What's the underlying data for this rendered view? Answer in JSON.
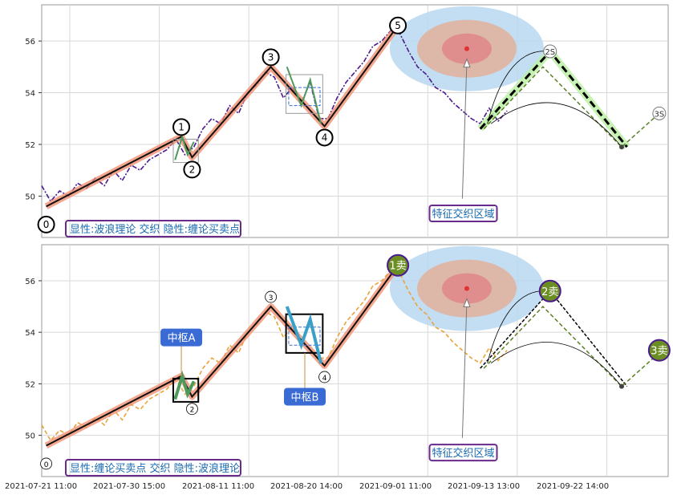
{
  "chart_data": {
    "type": "line",
    "x_tick_labels": [
      "2021-07-21 11:00",
      "2021-07-30 15:00",
      "2021-08-11 11:00",
      "2021-08-20 14:00",
      "2021-09-01 11:00",
      "2021-09-13 13:00",
      "2021-09-22 14:00"
    ],
    "ylim": [
      48.4,
      57.4
    ],
    "y_ticks": [
      50,
      52,
      54,
      56
    ],
    "grid": true,
    "panels": [
      {
        "caption": "显性:波浪理论 交织 隐性:缠论买卖点",
        "region_label": "特征交织区域",
        "wave_points": [
          {
            "x": 0.5,
            "y": 49.6,
            "label": "0"
          },
          {
            "x": 15.6,
            "y": 52.3,
            "label": "1"
          },
          {
            "x": 16.8,
            "y": 51.5,
            "label": "2"
          },
          {
            "x": 25.6,
            "y": 55.0,
            "label": "3"
          },
          {
            "x": 31.6,
            "y": 52.7,
            "label": "4"
          },
          {
            "x": 39.8,
            "y": 56.6,
            "label": "5"
          }
        ],
        "projection_points": [
          {
            "x": 49.0,
            "y": 52.6,
            "label": ""
          },
          {
            "x": 56.8,
            "y": 55.6,
            "label": "2S"
          },
          {
            "x": 65.4,
            "y": 51.9,
            "label": ""
          },
          {
            "x": 69.0,
            "y": 53.2,
            "label": "3S"
          }
        ]
      },
      {
        "caption": "显性:缠论买卖点 交织 隐性:波浪理论",
        "region_label": "特征交织区域",
        "hub_a_label": "中枢A",
        "hub_b_label": "中枢B",
        "bi_points": [
          {
            "x": 0.5,
            "y": 49.6,
            "label": "0"
          },
          {
            "x": 15.6,
            "y": 52.3,
            "label": ""
          },
          {
            "x": 16.8,
            "y": 51.5,
            "label": "2"
          },
          {
            "x": 25.6,
            "y": 55.0,
            "label": "3"
          },
          {
            "x": 31.6,
            "y": 52.7,
            "label": "4"
          },
          {
            "x": 39.8,
            "y": 56.6,
            "label": "1卖"
          }
        ],
        "sell_points": [
          {
            "x": 56.8,
            "y": 55.6,
            "label": "2卖"
          },
          {
            "x": 69.0,
            "y": 53.3,
            "label": "3卖"
          }
        ]
      }
    ],
    "price_series": [
      {
        "x": 0,
        "y": 50.4
      },
      {
        "x": 1,
        "y": 49.8
      },
      {
        "x": 2,
        "y": 50.2
      },
      {
        "x": 3,
        "y": 50.0
      },
      {
        "x": 4,
        "y": 50.5
      },
      {
        "x": 5,
        "y": 50.3
      },
      {
        "x": 6,
        "y": 50.7
      },
      {
        "x": 7,
        "y": 50.4
      },
      {
        "x": 8,
        "y": 51.0
      },
      {
        "x": 9,
        "y": 50.6
      },
      {
        "x": 10,
        "y": 51.2
      },
      {
        "x": 11,
        "y": 51.0
      },
      {
        "x": 12,
        "y": 51.4
      },
      {
        "x": 13,
        "y": 51.6
      },
      {
        "x": 14,
        "y": 51.8
      },
      {
        "x": 15,
        "y": 52.2
      },
      {
        "x": 16,
        "y": 51.6
      },
      {
        "x": 17,
        "y": 51.9
      },
      {
        "x": 18,
        "y": 52.6
      },
      {
        "x": 19,
        "y": 53.0
      },
      {
        "x": 20,
        "y": 52.8
      },
      {
        "x": 21,
        "y": 53.5
      },
      {
        "x": 22,
        "y": 53.2
      },
      {
        "x": 23,
        "y": 54.0
      },
      {
        "x": 24,
        "y": 54.3
      },
      {
        "x": 25,
        "y": 54.8
      },
      {
        "x": 26,
        "y": 54.6
      },
      {
        "x": 27,
        "y": 53.8
      },
      {
        "x": 28,
        "y": 54.2
      },
      {
        "x": 29,
        "y": 53.6
      },
      {
        "x": 30,
        "y": 54.4
      },
      {
        "x": 31,
        "y": 53.0
      },
      {
        "x": 32,
        "y": 53.0
      },
      {
        "x": 33,
        "y": 53.8
      },
      {
        "x": 34,
        "y": 54.4
      },
      {
        "x": 35,
        "y": 54.8
      },
      {
        "x": 36,
        "y": 55.2
      },
      {
        "x": 37,
        "y": 55.8
      },
      {
        "x": 38,
        "y": 56.0
      },
      {
        "x": 39,
        "y": 56.4
      },
      {
        "x": 40,
        "y": 56.3
      },
      {
        "x": 41,
        "y": 55.6
      },
      {
        "x": 42,
        "y": 55.0
      },
      {
        "x": 43,
        "y": 54.7
      },
      {
        "x": 44,
        "y": 54.2
      },
      {
        "x": 45,
        "y": 54.0
      },
      {
        "x": 46,
        "y": 53.6
      },
      {
        "x": 47,
        "y": 53.3
      },
      {
        "x": 48,
        "y": 53.0
      },
      {
        "x": 49,
        "y": 52.8
      },
      {
        "x": 50,
        "y": 53.4
      },
      {
        "x": 51,
        "y": 52.9
      },
      {
        "x": 52,
        "y": 53.3
      }
    ],
    "colors": {
      "wave_line": "#111111",
      "wave_halo": "#f08868",
      "price_top": "#4b1a8c",
      "price_bottom": "#e8a43a",
      "projection": "#5b7f25",
      "region_outer": "#b8d8f0",
      "region_mid": "#e0b4a0",
      "region_inner": "#e08a8a",
      "label_border": "#6a2a8a",
      "label_text": "#1a6ab0",
      "callout_fill": "#3a6bd4",
      "sell_fill": "#6b8e23"
    }
  }
}
